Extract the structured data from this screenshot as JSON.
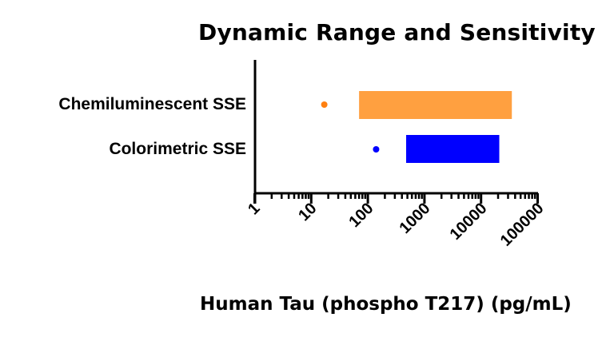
{
  "chart_data": {
    "type": "bar",
    "subtype": "floating-horizontal-range-with-point",
    "title": "Dynamic Range and Sensitivity",
    "xlabel": "Human Tau (phospho T217) (pg/mL)",
    "ylabel": "",
    "xscale": "log",
    "xlim": [
      1,
      100000
    ],
    "x_ticks": [
      "1",
      "10",
      "100",
      "1000",
      "10000",
      "100000"
    ],
    "grid": false,
    "legend": null,
    "categories": [
      "Chemiluminescent SSE",
      "Colorimetric SSE"
    ],
    "series": [
      {
        "name": "Chemiluminescent SSE",
        "sensitivity_point": 17,
        "range_start": 70,
        "range_end": 35000,
        "bar_color": "#FFA040",
        "point_color": "#FF8010"
      },
      {
        "name": "Colorimetric SSE",
        "sensitivity_point": 140,
        "range_start": 475,
        "range_end": 21000,
        "bar_color": "#0000FF",
        "point_color": "#0000FF"
      }
    ]
  },
  "labels": {
    "title": "Dynamic Range and Sensitivity",
    "xlabel": "Human Tau (phospho T217) (pg/mL)",
    "cat0": "Chemiluminescent SSE",
    "cat1": "Colorimetric SSE",
    "tick0": "1",
    "tick1": "10",
    "tick2": "100",
    "tick3": "1000",
    "tick4": "10000",
    "tick5": "100000"
  }
}
